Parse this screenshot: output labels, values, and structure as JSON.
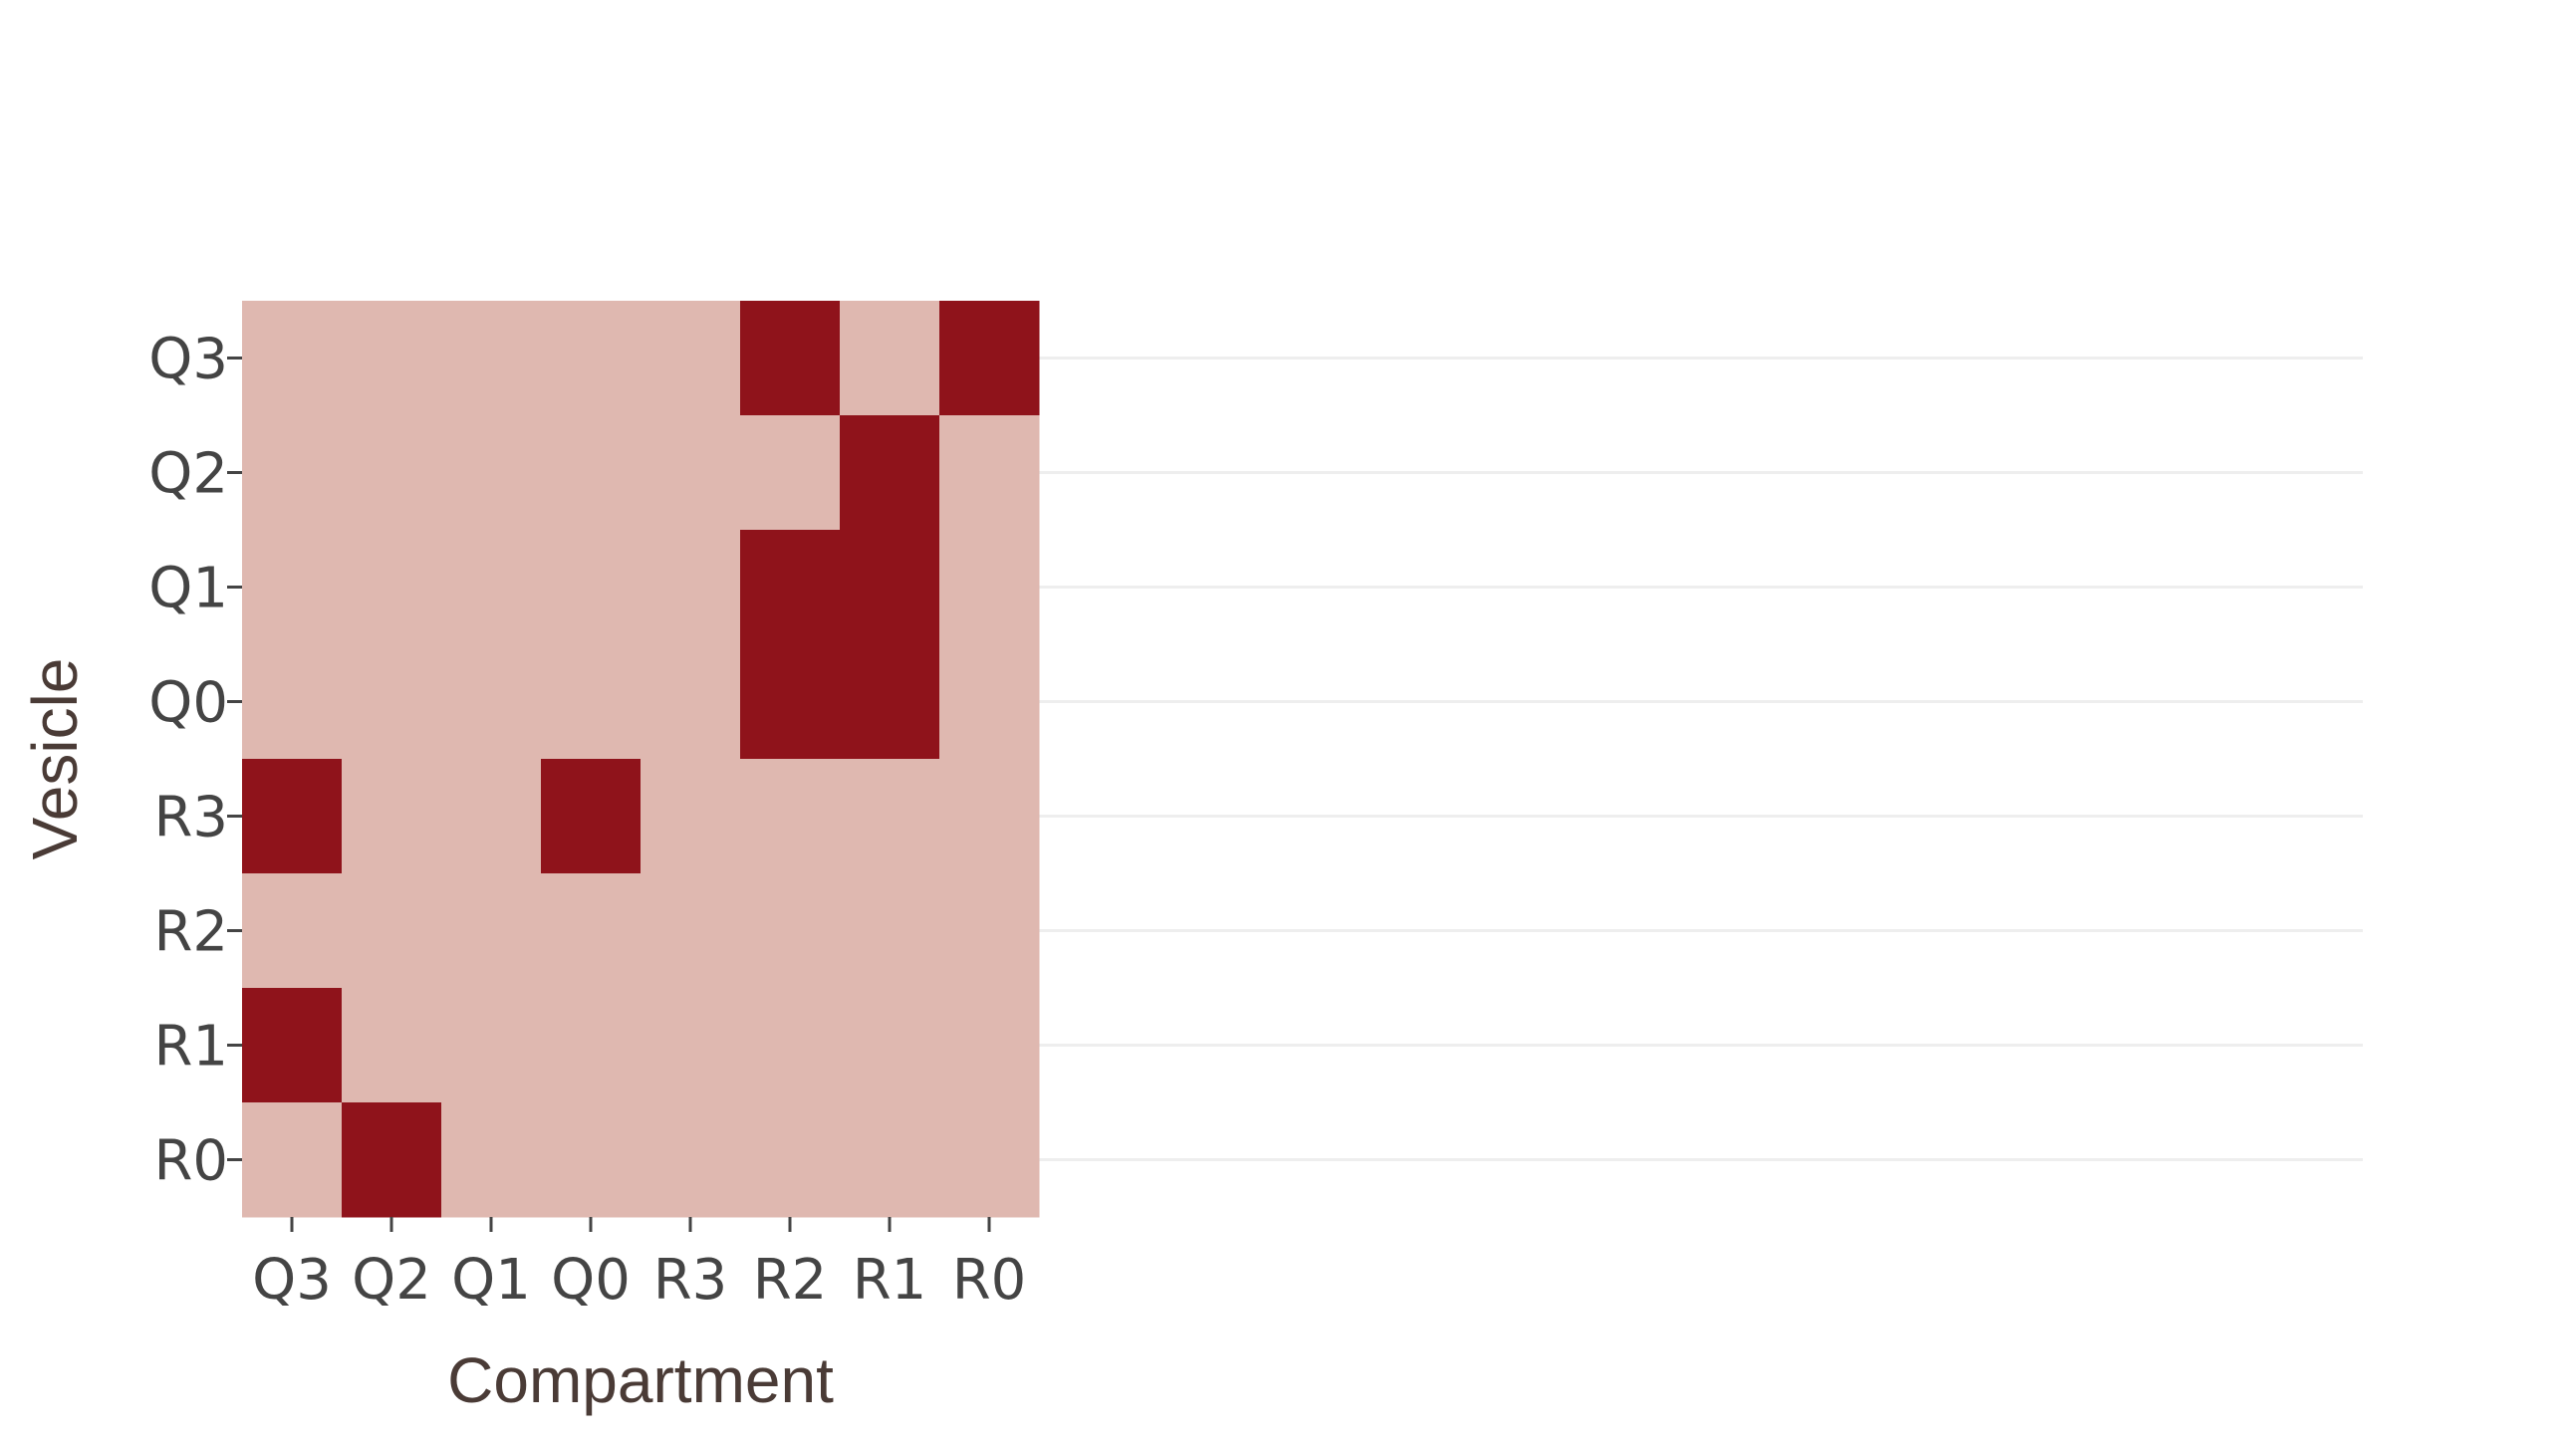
{
  "chart_data": {
    "type": "heatmap",
    "xlabel": "Compartment",
    "ylabel": "Vesicle",
    "x_categories": [
      "Q3",
      "Q2",
      "Q1",
      "Q0",
      "R3",
      "R2",
      "R1",
      "R0"
    ],
    "y_categories": [
      "Q3",
      "Q2",
      "Q1",
      "Q0",
      "R3",
      "R2",
      "R1",
      "R0"
    ],
    "values": [
      [
        0,
        0,
        0,
        0,
        0,
        1,
        0,
        1
      ],
      [
        0,
        0,
        0,
        0,
        0,
        0,
        1,
        0
      ],
      [
        0,
        0,
        0,
        0,
        0,
        1,
        1,
        0
      ],
      [
        0,
        0,
        0,
        0,
        0,
        1,
        1,
        0
      ],
      [
        1,
        0,
        0,
        1,
        0,
        0,
        0,
        0
      ],
      [
        0,
        0,
        0,
        0,
        0,
        0,
        0,
        0
      ],
      [
        1,
        0,
        0,
        0,
        0,
        0,
        0,
        0
      ],
      [
        0,
        1,
        0,
        0,
        0,
        0,
        0,
        0
      ]
    ],
    "colors": {
      "high": "#8f131b",
      "low": "#dfb8b0"
    },
    "grid": true
  }
}
